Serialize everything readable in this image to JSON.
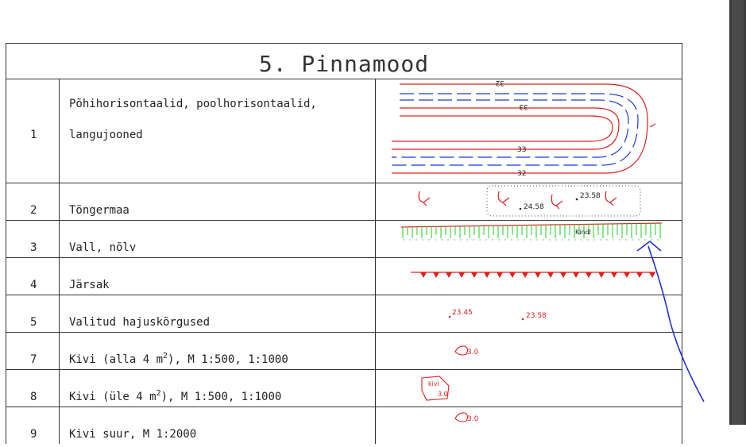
{
  "title": "5. Pinnamood",
  "rows": [
    {
      "num": "1",
      "line1": "Põhihorisontaalid, poolhorisontaalid,",
      "line2": "langujooned"
    },
    {
      "num": "2",
      "name": "Tõngermaa"
    },
    {
      "num": "3",
      "name": "Vall, nõlv"
    },
    {
      "num": "4",
      "name": "Järsak"
    },
    {
      "num": "5",
      "name": "Valitud hajuskõrgused"
    },
    {
      "num": "7",
      "name_pre": "Kivi (alla 4 m",
      "sup": "2",
      "name_post": "), M 1:500, 1:1000"
    },
    {
      "num": "8",
      "name_pre": "Kivi (üle 4 m",
      "sup": "2",
      "name_post": "), M 1:500, 1:1000"
    },
    {
      "num": "9",
      "name": "Kivi suur, M 1:2000"
    }
  ],
  "symbols": {
    "contour_labels": [
      "32",
      "33",
      "33",
      "32"
    ],
    "spot_heights_tongermaa": [
      "24.58",
      "23.58"
    ],
    "slope_label": "Kindl",
    "spot_heights_selected": [
      "23.45",
      "23.58"
    ],
    "stone_small_label": "3.0",
    "stone_large_labels": [
      "kivi",
      "3.0"
    ],
    "stone_big_label": "3.0"
  },
  "colors": {
    "contour_red": "#e02020",
    "contour_blue": "#1a3ad6",
    "slope_green": "#22cc22",
    "annotation_blue": "#1f2fd8",
    "grid_line": "#333333",
    "scrollbar": "#3c3c3c"
  }
}
